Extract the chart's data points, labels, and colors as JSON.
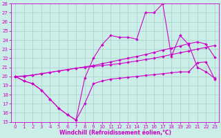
{
  "xlabel": "Windchill (Refroidissement éolien,°C)",
  "background_color": "#cceee8",
  "grid_color": "#aad4cc",
  "line_color": "#cc00cc",
  "x": [
    0,
    1,
    2,
    3,
    4,
    5,
    6,
    7,
    8,
    9,
    10,
    11,
    12,
    13,
    14,
    15,
    16,
    17,
    18,
    19,
    20,
    21,
    22,
    23
  ],
  "series1": [
    20.0,
    19.5,
    19.2,
    18.5,
    17.5,
    16.5,
    15.8,
    15.2,
    17.0,
    19.2,
    19.5,
    19.7,
    19.8,
    19.9,
    20.0,
    20.1,
    20.2,
    20.3,
    20.4,
    20.5,
    20.5,
    21.5,
    21.6,
    19.7
  ],
  "series2": [
    20.0,
    19.5,
    19.2,
    18.5,
    17.5,
    16.5,
    15.8,
    15.2,
    19.8,
    22.0,
    23.5,
    24.5,
    24.3,
    24.3,
    24.1,
    27.0,
    27.0,
    28.0,
    22.2,
    24.5,
    23.5,
    21.0,
    20.5,
    19.8
  ],
  "series3": [
    20.0,
    20.0,
    20.15,
    20.3,
    20.45,
    20.6,
    20.75,
    20.9,
    21.0,
    21.1,
    21.2,
    21.3,
    21.4,
    21.55,
    21.7,
    21.85,
    22.0,
    22.2,
    22.4,
    22.6,
    22.8,
    23.0,
    23.2,
    23.4
  ],
  "series4": [
    20.0,
    20.05,
    20.15,
    20.3,
    20.45,
    20.6,
    20.75,
    20.9,
    21.05,
    21.2,
    21.4,
    21.6,
    21.8,
    22.0,
    22.2,
    22.4,
    22.65,
    22.9,
    23.1,
    23.35,
    23.6,
    23.8,
    23.55,
    22.1
  ],
  "ylim": [
    15,
    28
  ],
  "xlim_min": -0.5,
  "xlim_max": 23.5,
  "yticks": [
    15,
    16,
    17,
    18,
    19,
    20,
    21,
    22,
    23,
    24,
    25,
    26,
    27,
    28
  ],
  "xticks": [
    0,
    1,
    2,
    3,
    4,
    5,
    6,
    7,
    8,
    9,
    10,
    11,
    12,
    13,
    14,
    15,
    16,
    17,
    18,
    19,
    20,
    21,
    22,
    23
  ],
  "tick_fontsize": 5,
  "xlabel_fontsize": 5.5,
  "marker_size": 2.0,
  "line_width": 0.8
}
